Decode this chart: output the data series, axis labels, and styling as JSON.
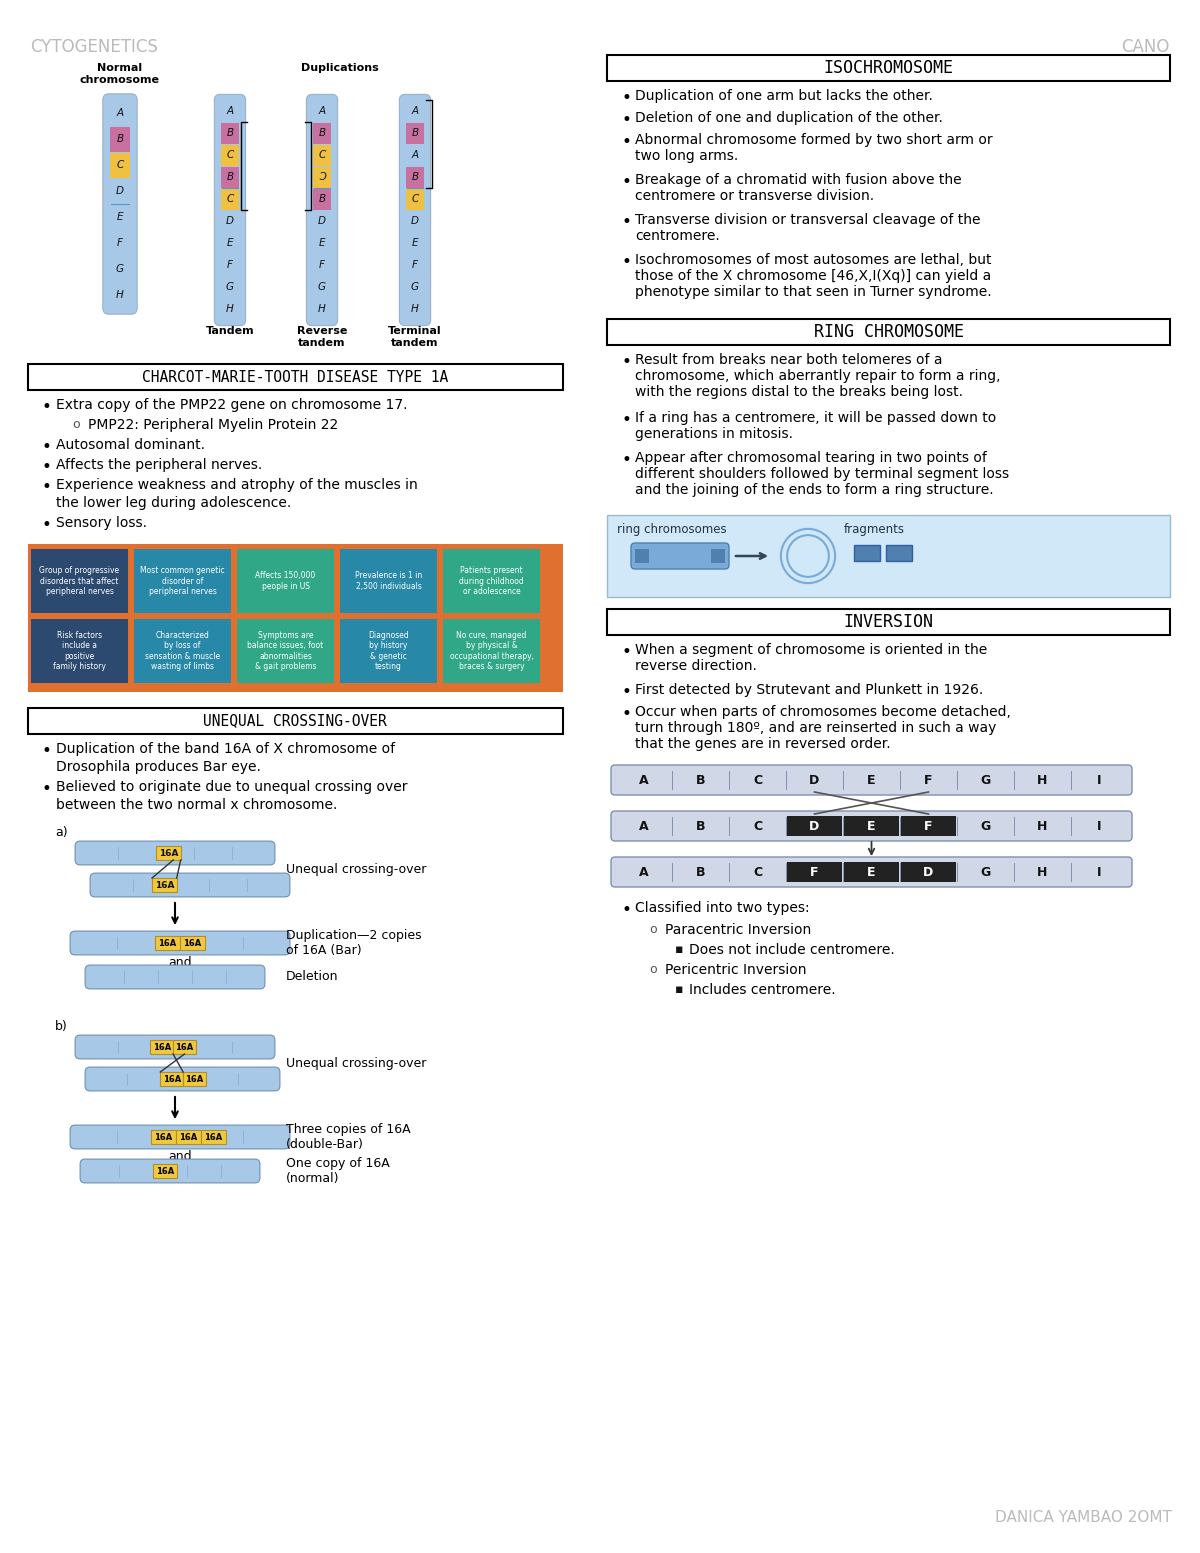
{
  "page_title_left": "CYTOGENETICS",
  "page_title_right": "CANO",
  "author": "DANICA YAMBAO 2OMT",
  "bg_color": "#ffffff",
  "section1_title": "ISOCHROMOSOME",
  "section1_bullets": [
    "Duplication of one arm but lacks the other.",
    "Deletion of one and duplication of the other.",
    "Abnormal chromosome formed by two short arm or\ntwo long arms.",
    "Breakage of a chromatid with fusion above the\ncentromere or transverse division.",
    "Transverse division or transversal cleavage of the\ncentromere.",
    "Isochromosomes of most autosomes are lethal, but\nthose of the X chromosome [46,X,I(Xq)] can yield a\nphenotype similar to that seen in Turner syndrome."
  ],
  "section2_title": "RING CHROMOSOME",
  "section2_bullets": [
    "Result from breaks near both telomeres of a\nchromosome, which aberrantly repair to form a ring,\nwith the regions distal to the breaks being lost.",
    "If a ring has a centromere, it will be passed down to\ngenerations in mitosis.",
    "Appear after chromosomal tearing in two points of\ndifferent shoulders followed by terminal segment loss\nand the joining of the ends to form a ring structure."
  ],
  "section3_title": "INVERSION",
  "section3_bullets": [
    "When a segment of chromosome is oriented in the\nreverse direction.",
    "First detected by Strutevant and Plunkett in 1926.",
    "Occur when parts of chromosomes become detached,\nturn through 180º, and are reinserted in such a way\nthat the genes are in reversed order."
  ],
  "section4_title": "CHARCOT-MARIE-TOOTH DISEASE TYPE 1A",
  "section4_bullets": [
    "Extra copy of the PMP22 gene on chromosome 17.",
    "PMP22: Peripheral Myelin Protein 22",
    "Autosomal dominant.",
    "Affects the peripheral nerves.",
    "Experience weakness and atrophy of the muscles in\nthe lower leg during adolescence.",
    "Sensory loss."
  ],
  "section5_title": "UNEQUAL CROSSING-OVER",
  "section5_bullets": [
    "Duplication of the band 16A of X chromosome of\nDrosophila produces Bar eye.",
    "Believed to originate due to unequal crossing over\nbetween the two normal x chromosome."
  ],
  "chrom_normal_label": "Normal\nchromosome",
  "chrom_dup_label": "Duplications",
  "chrom_tandem_label": "Tandem",
  "chrom_reverse_label": "Reverse\ntandem",
  "chrom_terminal_label": "Terminal\ntandem",
  "ring_label": "ring chromosomes",
  "fragments_label": "fragments",
  "inversion_row1": [
    "A",
    "B",
    "C",
    "D",
    "E",
    "F",
    "G",
    "H",
    "I"
  ],
  "inversion_row2_dark": [
    3,
    4,
    5
  ],
  "inversion_row2_labels": [
    "A",
    "B",
    "C",
    "D",
    "E",
    "F",
    "G",
    "H",
    "I"
  ],
  "inversion_row3_labels": [
    "A",
    "B",
    "C",
    "F",
    "E",
    "D",
    "G",
    "H",
    "I"
  ],
  "inversion_row3_dark": [
    3,
    4,
    5
  ],
  "color_blue_light": "#a8c8e8",
  "color_purple": "#c870a0",
  "color_yellow": "#f0c040",
  "color_orange_bg": "#e07030",
  "tile_colors_top": [
    "#2c4a70",
    "#2888a8",
    "#30a888",
    "#2888a8",
    "#30a888"
  ],
  "tile_colors_bot": [
    "#2c4a70",
    "#2888a8",
    "#30a888",
    "#2888a8",
    "#30a888"
  ],
  "tile_labels_top": [
    "Group of progressive\ndisorders that affect\nperipheral nerves",
    "Most common genetic\ndisorder of\nperipheral nerves",
    "Affects 150,000\npeople in US",
    "Prevalence is 1 in\n2,500 individuals",
    "Patients present\nduring childhood\nor adolescence"
  ],
  "tile_labels_bot": [
    "Risk factors\ninclude a\npositive\nfamily history",
    "Characterized\nby loss of\nsensation & muscle\nwasting of limbs",
    "Symptoms are\nbalance issues, foot\nabnormalities\n& gait problems",
    "Diagnosed\nby history\n& genetic\ntesting",
    "No cure, managed\nby physical &\noccupational therapy,\nbraces & surgery"
  ]
}
